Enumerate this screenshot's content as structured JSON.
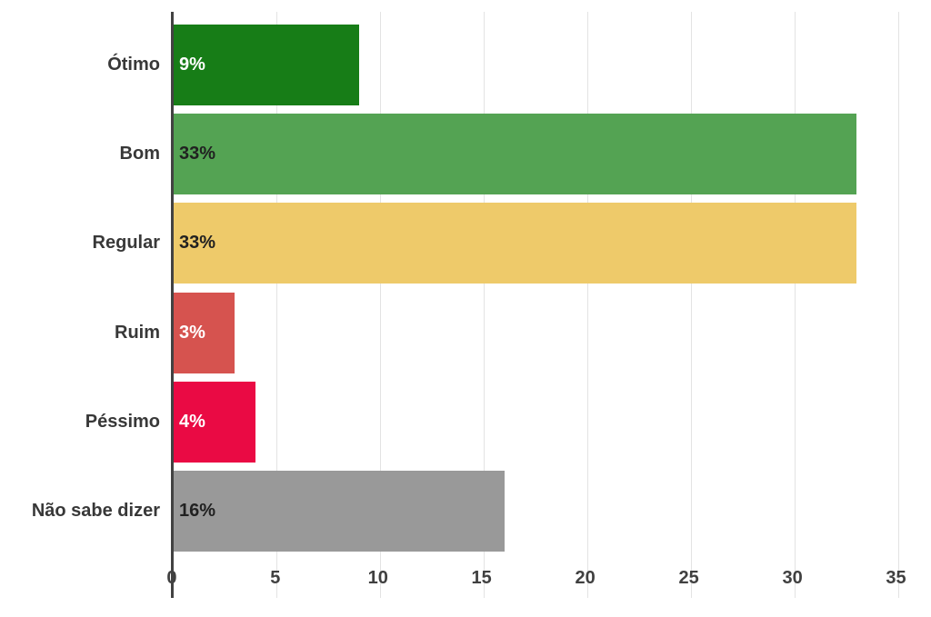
{
  "chart_data": {
    "type": "bar",
    "orientation": "horizontal",
    "categories": [
      "Ótimo",
      "Bom",
      "Regular",
      "Ruim",
      "Péssimo",
      "Não sabe dizer"
    ],
    "values": [
      9,
      33,
      33,
      3,
      4,
      16
    ],
    "value_labels": [
      "9%",
      "33%",
      "33%",
      "3%",
      "4%",
      "16%"
    ],
    "bar_colors": [
      "#177d17",
      "#54a353",
      "#eeca6a",
      "#d6534f",
      "#ea0a44",
      "#999999"
    ],
    "value_label_colors": [
      "#ffffff",
      "#212121",
      "#212121",
      "#ffffff",
      "#ffffff",
      "#212121"
    ],
    "x_ticks": [
      0,
      5,
      10,
      15,
      20,
      25,
      30,
      35
    ],
    "xlim": [
      0,
      35.8
    ],
    "grid": "vertical-only",
    "legend": "none",
    "background_color": "#ffffff",
    "gridline_color": "#e3e3e3",
    "axis_line_color": "#424242",
    "tick_label_color": "#404040",
    "category_label_color": "#383838"
  }
}
